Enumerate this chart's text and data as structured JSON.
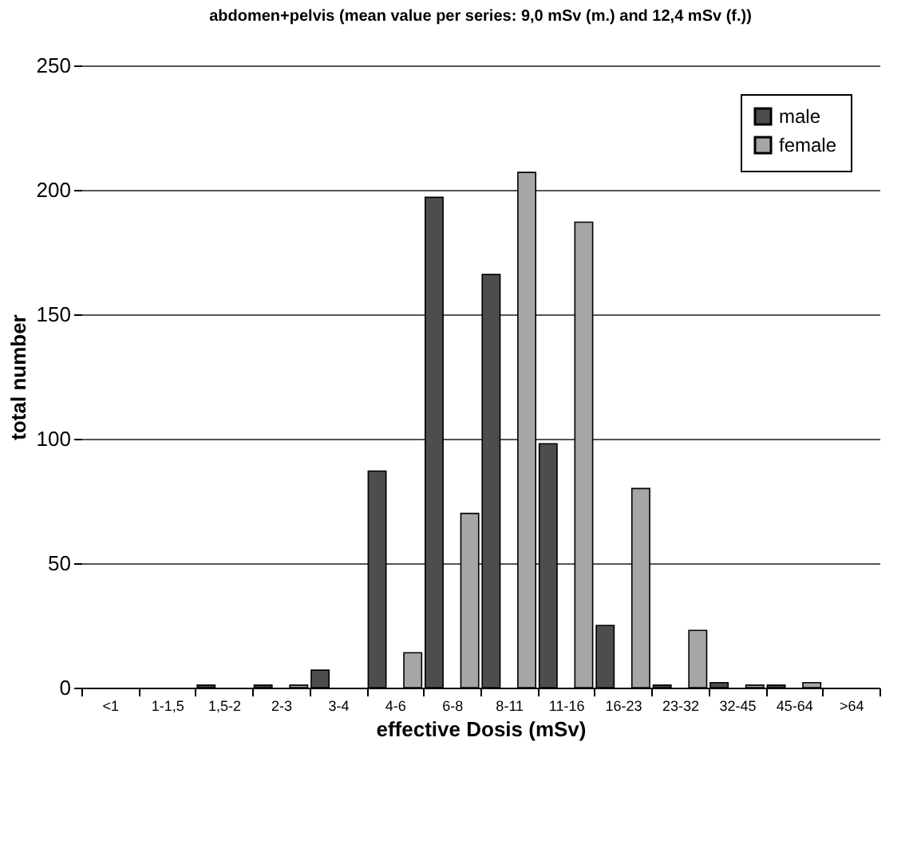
{
  "chart_data": {
    "type": "bar",
    "title": "abdomen+pelvis (mean value per series: 9,0 mSv (m.) and 12,4 mSv (f.))",
    "xlabel": "effective Dosis (mSv)",
    "ylabel": "total number",
    "categories": [
      "<1",
      "1-1,5",
      "1,5-2",
      "2-3",
      "3-4",
      "4-6",
      "6-8",
      "8-11",
      "11-16",
      "16-23",
      "23-32",
      "32-45",
      "45-64",
      ">64"
    ],
    "series": [
      {
        "name": "male",
        "color": "#4d4d4d",
        "values": [
          0,
          0,
          1,
          1,
          7,
          87,
          197,
          166,
          98,
          25,
          1,
          2,
          1,
          0
        ]
      },
      {
        "name": "female",
        "color": "#a6a6a6",
        "values": [
          0,
          0,
          0,
          1,
          0,
          14,
          70,
          207,
          187,
          80,
          23,
          1,
          2,
          0
        ]
      }
    ],
    "ylim": [
      0,
      250
    ],
    "yticks": [
      0,
      50,
      100,
      150,
      200,
      250
    ],
    "grid": "y",
    "legend": "top right"
  }
}
